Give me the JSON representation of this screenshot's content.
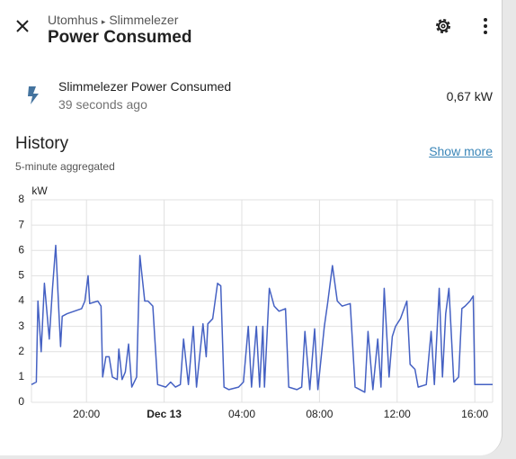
{
  "header": {
    "breadcrumb": [
      "Utomhus",
      "Slimmelezer"
    ],
    "title": "Power Consumed"
  },
  "entity": {
    "name": "Slimmelezer Power Consumed",
    "last_changed": "39 seconds ago",
    "state": "0,67 kW"
  },
  "history": {
    "title": "History",
    "subtitle": "5-minute aggregated",
    "show_more": "Show more"
  },
  "chart_data": {
    "type": "line",
    "y_label": "kW",
    "ylim": [
      0,
      8
    ],
    "yticks": [
      0,
      1,
      2,
      3,
      4,
      5,
      6,
      7,
      8
    ],
    "grid": true,
    "xlim": [
      "Dec 12 17:10",
      "Dec 13 16:55"
    ],
    "xticks": [
      {
        "value": "Dec 12 20:00",
        "label": "20:00"
      },
      {
        "value": "Dec 13 00:00",
        "label": "Dec 13"
      },
      {
        "value": "Dec 13 04:00",
        "label": "04:00"
      },
      {
        "value": "Dec 13 08:00",
        "label": "08:00"
      },
      {
        "value": "Dec 13 12:00",
        "label": "12:00"
      },
      {
        "value": "Dec 13 16:00",
        "label": "16:00"
      }
    ],
    "series": [
      {
        "name": "Slimmelezer Power Consumed",
        "color": "#4561c3",
        "x": [
          "Dec 12 17:10",
          "Dec 12 17:25",
          "Dec 12 17:30",
          "Dec 12 17:40",
          "Dec 12 17:50",
          "Dec 12 18:05",
          "Dec 12 18:15",
          "Dec 12 18:25",
          "Dec 12 18:35",
          "Dec 12 18:40",
          "Dec 12 18:45",
          "Dec 12 19:00",
          "Dec 12 19:45",
          "Dec 12 19:55",
          "Dec 12 20:05",
          "Dec 12 20:10",
          "Dec 12 20:35",
          "Dec 12 20:45",
          "Dec 12 20:50",
          "Dec 12 21:00",
          "Dec 12 21:10",
          "Dec 12 21:20",
          "Dec 12 21:35",
          "Dec 12 21:40",
          "Dec 12 21:50",
          "Dec 12 22:00",
          "Dec 12 22:10",
          "Dec 12 22:20",
          "Dec 12 22:35",
          "Dec 12 22:45",
          "Dec 12 23:00",
          "Dec 12 23:10",
          "Dec 12 23:25",
          "Dec 12 23:40",
          "Dec 13 00:05",
          "Dec 13 00:20",
          "Dec 13 00:35",
          "Dec 13 00:50",
          "Dec 13 01:00",
          "Dec 13 01:15",
          "Dec 13 01:30",
          "Dec 13 01:40",
          "Dec 13 02:00",
          "Dec 13 02:10",
          "Dec 13 02:15",
          "Dec 13 02:30",
          "Dec 13 02:45",
          "Dec 13 02:55",
          "Dec 13 03:05",
          "Dec 13 03:20",
          "Dec 13 03:50",
          "Dec 13 04:05",
          "Dec 13 04:20",
          "Dec 13 04:30",
          "Dec 13 04:45",
          "Dec 13 04:55",
          "Dec 13 05:05",
          "Dec 13 05:10",
          "Dec 13 05:25",
          "Dec 13 05:40",
          "Dec 13 05:55",
          "Dec 13 06:15",
          "Dec 13 06:25",
          "Dec 13 06:50",
          "Dec 13 07:05",
          "Dec 13 07:15",
          "Dec 13 07:30",
          "Dec 13 07:45",
          "Dec 13 07:55",
          "Dec 13 08:15",
          "Dec 13 08:25",
          "Dec 13 08:40",
          "Dec 13 08:55",
          "Dec 13 09:10",
          "Dec 13 09:35",
          "Dec 13 09:50",
          "Dec 13 10:20",
          "Dec 13 10:30",
          "Dec 13 10:45",
          "Dec 13 11:00",
          "Dec 13 11:10",
          "Dec 13 11:20",
          "Dec 13 11:35",
          "Dec 13 11:45",
          "Dec 13 11:55",
          "Dec 13 12:10",
          "Dec 13 12:30",
          "Dec 13 12:40",
          "Dec 13 12:55",
          "Dec 13 13:05",
          "Dec 13 13:30",
          "Dec 13 13:45",
          "Dec 13 13:55",
          "Dec 13 14:10",
          "Dec 13 14:20",
          "Dec 13 14:30",
          "Dec 13 14:40",
          "Dec 13 14:55",
          "Dec 13 15:10",
          "Dec 13 15:20",
          "Dec 13 15:30",
          "Dec 13 15:45",
          "Dec 13 15:55",
          "Dec 13 16:00",
          "Dec 13 16:20",
          "Dec 13 16:55"
        ],
        "values": [
          0.7,
          0.8,
          4.0,
          2.0,
          4.7,
          2.5,
          4.5,
          6.2,
          3.5,
          2.2,
          3.4,
          3.5,
          3.7,
          4.0,
          5.0,
          3.9,
          4.0,
          3.8,
          1.0,
          1.8,
          1.8,
          1.0,
          0.9,
          2.1,
          0.9,
          1.2,
          2.3,
          0.6,
          1.0,
          5.8,
          4.0,
          4.0,
          3.8,
          0.7,
          0.6,
          0.8,
          0.6,
          0.7,
          2.5,
          0.7,
          3.0,
          0.6,
          3.1,
          1.8,
          3.1,
          3.3,
          4.7,
          4.6,
          0.6,
          0.5,
          0.6,
          0.8,
          3.0,
          0.6,
          3.0,
          0.6,
          3.0,
          0.6,
          4.5,
          3.8,
          3.6,
          3.7,
          0.6,
          0.5,
          0.6,
          2.8,
          0.5,
          2.9,
          0.5,
          3.0,
          3.9,
          5.4,
          4.0,
          3.8,
          3.9,
          0.6,
          0.4,
          2.8,
          0.5,
          2.5,
          0.6,
          4.5,
          1.0,
          2.6,
          3.0,
          3.3,
          4.0,
          1.5,
          1.3,
          0.6,
          0.7,
          2.8,
          0.7,
          4.5,
          1.0,
          3.5,
          4.5,
          0.8,
          1.0,
          3.7,
          3.8,
          4.0,
          4.2,
          0.7,
          0.7,
          0.7
        ]
      }
    ]
  }
}
